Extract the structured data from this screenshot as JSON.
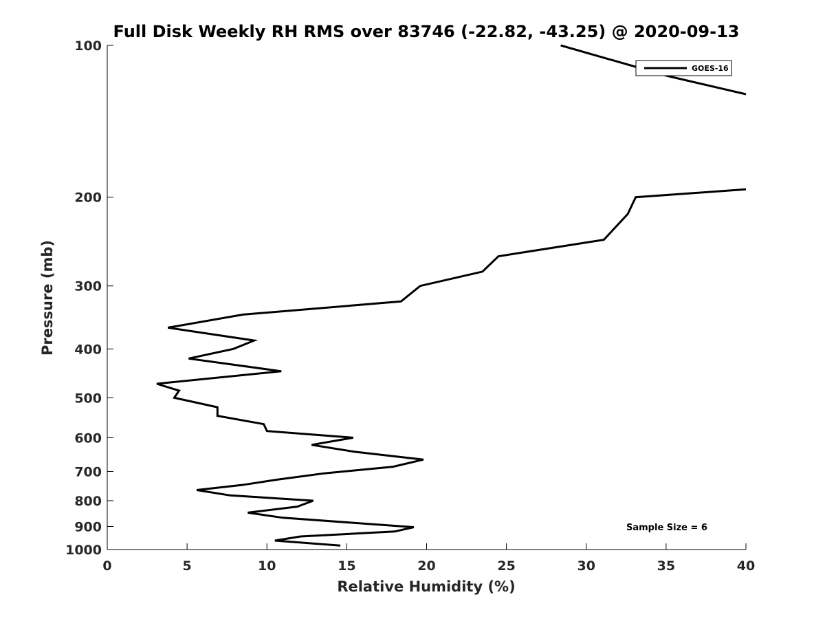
{
  "chart_data": {
    "type": "line",
    "title": "Full Disk Weekly RH RMS over 83746 (-22.82, -43.25) @ 2020-09-13",
    "xlabel": "Relative Humidity (%)",
    "ylabel": "Pressure (mb)",
    "xlim": [
      0,
      40
    ],
    "ylim": [
      1000,
      100
    ],
    "yscale": "log",
    "x_ticks": [
      "0",
      "5",
      "10",
      "15",
      "20",
      "25",
      "30",
      "35",
      "40"
    ],
    "y_ticks": [
      "100",
      "200",
      "300",
      "400",
      "500",
      "600",
      "700",
      "800",
      "900",
      "1000"
    ],
    "x_tick_values": [
      0,
      5,
      10,
      15,
      20,
      25,
      30,
      35,
      40
    ],
    "y_tick_values": [
      100,
      200,
      300,
      400,
      500,
      600,
      700,
      800,
      900,
      1000
    ],
    "grid": false,
    "legend_position": "top-right",
    "annotation": "Sample Size = 6",
    "series": [
      {
        "name": "GOES-16",
        "color": "#000000",
        "points": [
          [
            28.4,
            100
          ],
          [
            35.1,
            115
          ],
          [
            40.0,
            125
          ],
          [
            null,
            null
          ],
          [
            40.0,
            193
          ],
          [
            33.1,
            200
          ],
          [
            32.6,
            216
          ],
          [
            31.1,
            243
          ],
          [
            24.5,
            262
          ],
          [
            23.5,
            281
          ],
          [
            19.6,
            300
          ],
          [
            18.4,
            322
          ],
          [
            8.5,
            342
          ],
          [
            3.8,
            363
          ],
          [
            9.2,
            385
          ],
          [
            7.9,
            400
          ],
          [
            5.1,
            418
          ],
          [
            10.9,
            443
          ],
          [
            3.1,
            469
          ],
          [
            4.5,
            484
          ],
          [
            4.2,
            500
          ],
          [
            6.9,
            522
          ],
          [
            6.9,
            543
          ],
          [
            9.8,
            564
          ],
          [
            10.0,
            582
          ],
          [
            15.4,
            600
          ],
          [
            12.8,
            620
          ],
          [
            15.5,
            640
          ],
          [
            19.8,
            663
          ],
          [
            17.9,
            685
          ],
          [
            13.6,
            706
          ],
          [
            10.6,
            727
          ],
          [
            8.4,
            745
          ],
          [
            5.6,
            762
          ],
          [
            7.7,
            781
          ],
          [
            12.9,
            800
          ],
          [
            11.9,
            822
          ],
          [
            8.8,
            845
          ],
          [
            11.0,
            865
          ],
          [
            19.2,
            903
          ],
          [
            18.0,
            921
          ],
          [
            12.1,
            942
          ],
          [
            10.5,
            960
          ],
          [
            14.6,
            982
          ]
        ]
      }
    ]
  }
}
